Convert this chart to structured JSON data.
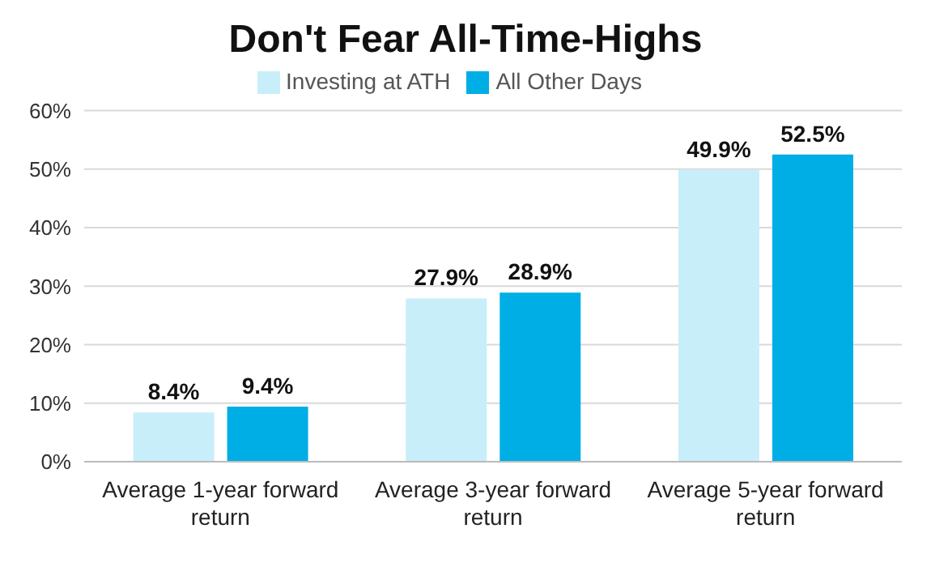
{
  "chart_data": {
    "type": "bar",
    "title": "Don't Fear All-Time-Highs",
    "categories": [
      "Average 1-year forward return",
      "Average 3-year forward return",
      "Average 5-year forward return"
    ],
    "series": [
      {
        "name": "Investing at ATH",
        "color": "#c8eefa",
        "values": [
          8.4,
          27.9,
          49.9
        ],
        "value_labels": [
          "8.4%",
          "27.9%",
          "49.9%"
        ]
      },
      {
        "name": "All Other Days",
        "color": "#00aee6",
        "values": [
          9.4,
          28.9,
          52.5
        ],
        "value_labels": [
          "9.4%",
          "28.9%",
          "52.5%"
        ]
      }
    ],
    "ylim": [
      0,
      60
    ],
    "yticks": [
      {
        "value": 0,
        "label": "0%"
      },
      {
        "value": 10,
        "label": "10%"
      },
      {
        "value": 20,
        "label": "20%"
      },
      {
        "value": 30,
        "label": "30%"
      },
      {
        "value": 40,
        "label": "40%"
      },
      {
        "value": 50,
        "label": "50%"
      },
      {
        "value": 60,
        "label": "60%"
      }
    ],
    "grid": "y",
    "legend": "top"
  }
}
